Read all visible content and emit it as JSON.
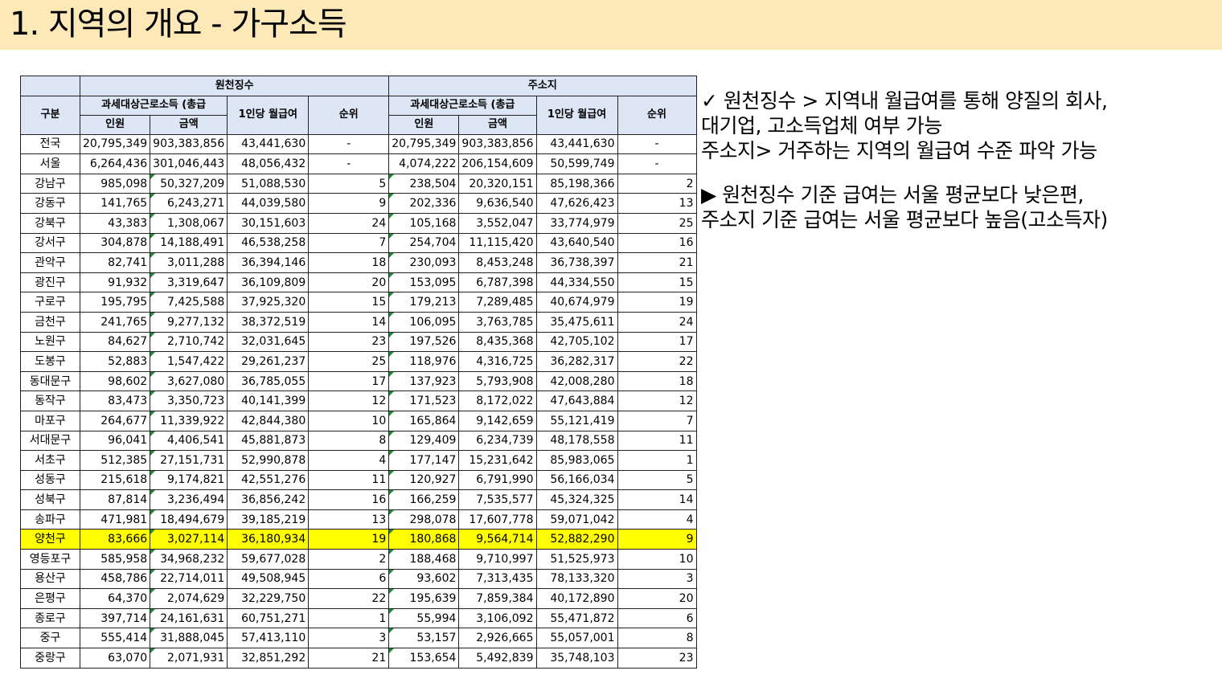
{
  "title": "1. 지역의 개요 - 가구소득",
  "table": {
    "group_headers": [
      "원천징수",
      "주소지"
    ],
    "col_gubun": "구분",
    "col_taxable": "과세대상근로소득 (총급",
    "col_people": "인원",
    "col_amount": "금액",
    "col_per_person": "1인당 월급여",
    "col_rank": "순위",
    "rows": [
      {
        "name": "전국",
        "w_people": "20,795,349",
        "w_amount": "903,383,856",
        "w_pp": "43,441,630",
        "w_rank": "-",
        "a_people": "20,795,349",
        "a_amount": "903,383,856",
        "a_pp": "43,441,630",
        "a_rank": "-"
      },
      {
        "name": "서울",
        "w_people": "6,264,436",
        "w_amount": "301,046,443",
        "w_pp": "48,056,432",
        "w_rank": "-",
        "a_people": "4,074,222",
        "a_amount": "206,154,609",
        "a_pp": "50,599,749",
        "a_rank": "-"
      },
      {
        "name": "강남구",
        "w_people": "985,098",
        "w_amount": "50,327,209",
        "w_pp": "51,088,530",
        "w_rank": "5",
        "a_people": "238,504",
        "a_amount": "20,320,151",
        "a_pp": "85,198,366",
        "a_rank": "2"
      },
      {
        "name": "강동구",
        "w_people": "141,765",
        "w_amount": "6,243,271",
        "w_pp": "44,039,580",
        "w_rank": "9",
        "a_people": "202,336",
        "a_amount": "9,636,540",
        "a_pp": "47,626,423",
        "a_rank": "13"
      },
      {
        "name": "강북구",
        "w_people": "43,383",
        "w_amount": "1,308,067",
        "w_pp": "30,151,603",
        "w_rank": "24",
        "a_people": "105,168",
        "a_amount": "3,552,047",
        "a_pp": "33,774,979",
        "a_rank": "25"
      },
      {
        "name": "강서구",
        "w_people": "304,878",
        "w_amount": "14,188,491",
        "w_pp": "46,538,258",
        "w_rank": "7",
        "a_people": "254,704",
        "a_amount": "11,115,420",
        "a_pp": "43,640,540",
        "a_rank": "16"
      },
      {
        "name": "관악구",
        "w_people": "82,741",
        "w_amount": "3,011,288",
        "w_pp": "36,394,146",
        "w_rank": "18",
        "a_people": "230,093",
        "a_amount": "8,453,248",
        "a_pp": "36,738,397",
        "a_rank": "21"
      },
      {
        "name": "광진구",
        "w_people": "91,932",
        "w_amount": "3,319,647",
        "w_pp": "36,109,809",
        "w_rank": "20",
        "a_people": "153,095",
        "a_amount": "6,787,398",
        "a_pp": "44,334,550",
        "a_rank": "15"
      },
      {
        "name": "구로구",
        "w_people": "195,795",
        "w_amount": "7,425,588",
        "w_pp": "37,925,320",
        "w_rank": "15",
        "a_people": "179,213",
        "a_amount": "7,289,485",
        "a_pp": "40,674,979",
        "a_rank": "19"
      },
      {
        "name": "금천구",
        "w_people": "241,765",
        "w_amount": "9,277,132",
        "w_pp": "38,372,519",
        "w_rank": "14",
        "a_people": "106,095",
        "a_amount": "3,763,785",
        "a_pp": "35,475,611",
        "a_rank": "24"
      },
      {
        "name": "노원구",
        "w_people": "84,627",
        "w_amount": "2,710,742",
        "w_pp": "32,031,645",
        "w_rank": "23",
        "a_people": "197,526",
        "a_amount": "8,435,368",
        "a_pp": "42,705,102",
        "a_rank": "17"
      },
      {
        "name": "도봉구",
        "w_people": "52,883",
        "w_amount": "1,547,422",
        "w_pp": "29,261,237",
        "w_rank": "25",
        "a_people": "118,976",
        "a_amount": "4,316,725",
        "a_pp": "36,282,317",
        "a_rank": "22"
      },
      {
        "name": "동대문구",
        "w_people": "98,602",
        "w_amount": "3,627,080",
        "w_pp": "36,785,055",
        "w_rank": "17",
        "a_people": "137,923",
        "a_amount": "5,793,908",
        "a_pp": "42,008,280",
        "a_rank": "18"
      },
      {
        "name": "동작구",
        "w_people": "83,473",
        "w_amount": "3,350,723",
        "w_pp": "40,141,399",
        "w_rank": "12",
        "a_people": "171,523",
        "a_amount": "8,172,022",
        "a_pp": "47,643,884",
        "a_rank": "12"
      },
      {
        "name": "마포구",
        "w_people": "264,677",
        "w_amount": "11,339,922",
        "w_pp": "42,844,380",
        "w_rank": "10",
        "a_people": "165,864",
        "a_amount": "9,142,659",
        "a_pp": "55,121,419",
        "a_rank": "7"
      },
      {
        "name": "서대문구",
        "w_people": "96,041",
        "w_amount": "4,406,541",
        "w_pp": "45,881,873",
        "w_rank": "8",
        "a_people": "129,409",
        "a_amount": "6,234,739",
        "a_pp": "48,178,558",
        "a_rank": "11"
      },
      {
        "name": "서초구",
        "w_people": "512,385",
        "w_amount": "27,151,731",
        "w_pp": "52,990,878",
        "w_rank": "4",
        "a_people": "177,147",
        "a_amount": "15,231,642",
        "a_pp": "85,983,065",
        "a_rank": "1"
      },
      {
        "name": "성동구",
        "w_people": "215,618",
        "w_amount": "9,174,821",
        "w_pp": "42,551,276",
        "w_rank": "11",
        "a_people": "120,927",
        "a_amount": "6,791,990",
        "a_pp": "56,166,034",
        "a_rank": "5"
      },
      {
        "name": "성북구",
        "w_people": "87,814",
        "w_amount": "3,236,494",
        "w_pp": "36,856,242",
        "w_rank": "16",
        "a_people": "166,259",
        "a_amount": "7,535,577",
        "a_pp": "45,324,325",
        "a_rank": "14"
      },
      {
        "name": "송파구",
        "w_people": "471,981",
        "w_amount": "18,494,679",
        "w_pp": "39,185,219",
        "w_rank": "13",
        "a_people": "298,078",
        "a_amount": "17,607,778",
        "a_pp": "59,071,042",
        "a_rank": "4"
      },
      {
        "name": "양천구",
        "w_people": "83,666",
        "w_amount": "3,027,114",
        "w_pp": "36,180,934",
        "w_rank": "19",
        "a_people": "180,868",
        "a_amount": "9,564,714",
        "a_pp": "52,882,290",
        "a_rank": "9",
        "highlight": true
      },
      {
        "name": "영등포구",
        "w_people": "585,958",
        "w_amount": "34,968,232",
        "w_pp": "59,677,028",
        "w_rank": "2",
        "a_people": "188,468",
        "a_amount": "9,710,997",
        "a_pp": "51,525,973",
        "a_rank": "10"
      },
      {
        "name": "용산구",
        "w_people": "458,786",
        "w_amount": "22,714,011",
        "w_pp": "49,508,945",
        "w_rank": "6",
        "a_people": "93,602",
        "a_amount": "7,313,435",
        "a_pp": "78,133,320",
        "a_rank": "3"
      },
      {
        "name": "은평구",
        "w_people": "64,370",
        "w_amount": "2,074,629",
        "w_pp": "32,229,750",
        "w_rank": "22",
        "a_people": "195,639",
        "a_amount": "7,859,384",
        "a_pp": "40,172,890",
        "a_rank": "20"
      },
      {
        "name": "종로구",
        "w_people": "397,714",
        "w_amount": "24,161,631",
        "w_pp": "60,751,271",
        "w_rank": "1",
        "a_people": "55,994",
        "a_amount": "3,106,092",
        "a_pp": "55,471,872",
        "a_rank": "6"
      },
      {
        "name": "중구",
        "w_people": "555,414",
        "w_amount": "31,888,045",
        "w_pp": "57,413,110",
        "w_rank": "3",
        "a_people": "53,157",
        "a_amount": "2,926,665",
        "a_pp": "55,057,001",
        "a_rank": "8"
      },
      {
        "name": "중랑구",
        "w_people": "63,070",
        "w_amount": "2,071,931",
        "w_pp": "32,851,292",
        "w_rank": "21",
        "a_people": "153,654",
        "a_amount": "5,492,839",
        "a_pp": "35,748,103",
        "a_rank": "23"
      }
    ]
  },
  "notes": {
    "block1": [
      "✓    원천징수 > 지역내 월급여를 통해 양질의 회사,",
      "   대기업, 고소득업체 여부 가능",
      "   주소지> 거주하는 지역의 월급여 수준 파악 가능"
    ],
    "block2": [
      "▶ 원천징수 기준 급여는 서울 평균보다 낮은편,",
      "   주소지 기준 급여는 서울 평균보다 높음(고소득자)"
    ]
  },
  "colors": {
    "title_bg": "#fde9b8",
    "header_bg": "#dce6f5",
    "highlight": "#ffff00"
  }
}
